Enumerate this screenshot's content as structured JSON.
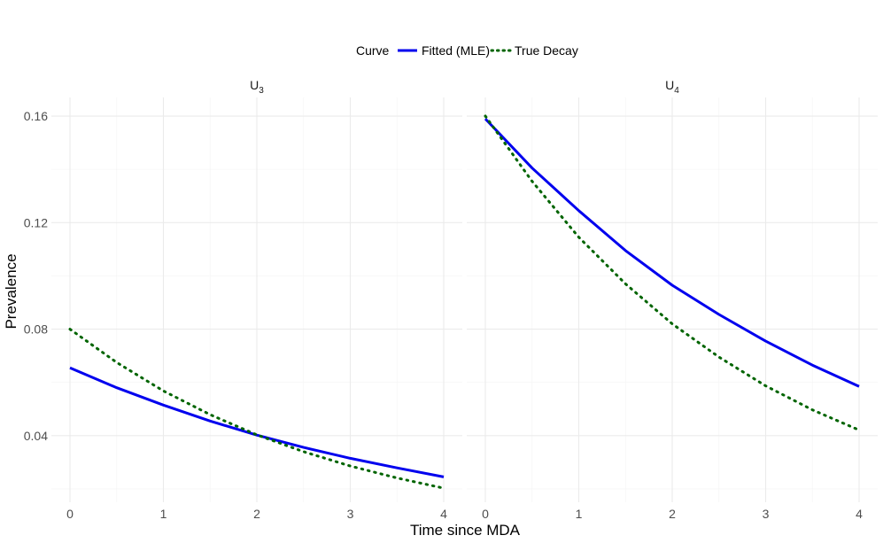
{
  "chart_data": {
    "type": "line",
    "xlabel": "Time since MDA",
    "ylabel": "Prevalence",
    "xlim": [
      0,
      4
    ],
    "ylim": [
      0.015,
      0.167
    ],
    "x_ticks": [
      "0",
      "1",
      "2",
      "3",
      "4"
    ],
    "y_ticks": [
      "0.04",
      "0.08",
      "0.12",
      "0.16"
    ],
    "legend": {
      "title": "Curve",
      "placement": "top",
      "entries": [
        "Fitted (MLE)",
        "True Decay"
      ]
    },
    "colors": {
      "fitted": "#0000ee",
      "true": "#006400"
    },
    "panels": [
      {
        "strip_base": "U",
        "strip_sub": "3",
        "series": [
          {
            "name": "Fitted (MLE)",
            "x": [
              0,
              0.5,
              1,
              1.5,
              2,
              2.5,
              3,
              3.5,
              4
            ],
            "values": [
              0.0655,
              0.058,
              0.0515,
              0.0455,
              0.0402,
              0.0356,
              0.0315,
              0.0279,
              0.0245
            ]
          },
          {
            "name": "True Decay",
            "x": [
              0,
              0.5,
              1,
              1.5,
              2,
              2.5,
              3,
              3.5,
              4
            ],
            "values": [
              0.08,
              0.0675,
              0.0568,
              0.0479,
              0.0403,
              0.034,
              0.0286,
              0.0241,
              0.0203
            ]
          }
        ]
      },
      {
        "strip_base": "U",
        "strip_sub": "4",
        "series": [
          {
            "name": "Fitted (MLE)",
            "x": [
              0,
              0.5,
              1,
              1.5,
              2,
              2.5,
              3,
              3.5,
              4
            ],
            "values": [
              0.159,
              0.1405,
              0.1245,
              0.1095,
              0.0965,
              0.0855,
              0.0755,
              0.0665,
              0.0585
            ]
          },
          {
            "name": "True Decay",
            "x": [
              0,
              0.5,
              1,
              1.5,
              2,
              2.5,
              3,
              3.5,
              4
            ],
            "values": [
              0.16,
              0.1355,
              0.1145,
              0.097,
              0.082,
              0.0695,
              0.0587,
              0.0497,
              0.0421
            ]
          }
        ]
      }
    ]
  }
}
